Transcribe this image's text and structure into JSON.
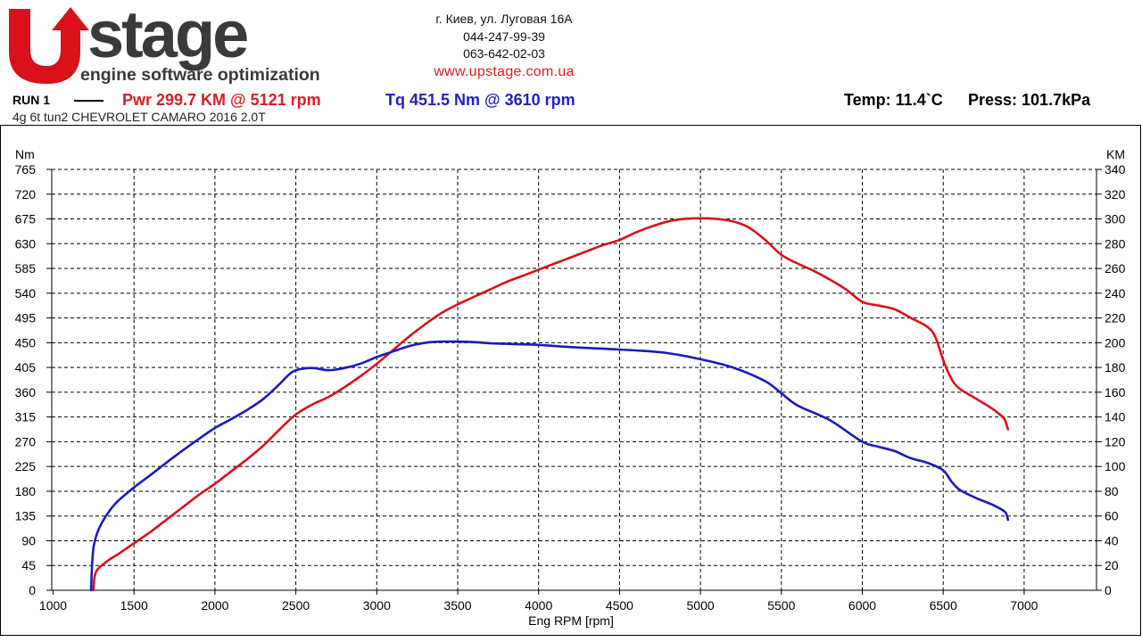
{
  "logo": {
    "brand": "stage",
    "tagline": "engine software optimization",
    "color_red": "#d9111b",
    "color_dark": "#3a3a3a"
  },
  "contact": {
    "address": "г. Киев, ул. Луговая 16А",
    "phone1": "044-247-99-39",
    "phone2": "063-642-02-03",
    "website": "www.upstage.com.ua"
  },
  "run": {
    "label": "RUN 1",
    "pwr": "Pwr  299.7 KM @ 5121 rpm",
    "tq": "Tq 451.5 Nm @ 3610 rpm",
    "temp": "Temp: 11.4`C",
    "press": "Press: 101.7kPa",
    "vehicle": "4g 6t tun2 CHEVROLET CAMARO 2016 2.0T"
  },
  "chart_data": {
    "type": "line",
    "xlabel": "Eng RPM [rpm]",
    "ylabel_left": "Nm",
    "ylabel_right": "KM",
    "xlim": [
      1000,
      7000
    ],
    "ylim_left": [
      0,
      765
    ],
    "ylim_right": [
      0,
      340
    ],
    "x_ticks": [
      1000,
      1500,
      2000,
      2500,
      3000,
      3500,
      4000,
      4500,
      5000,
      5500,
      6000,
      6500,
      7000
    ],
    "y_left_ticks": [
      0,
      45,
      90,
      135,
      180,
      225,
      270,
      315,
      360,
      405,
      450,
      495,
      540,
      585,
      630,
      675,
      720,
      765
    ],
    "y_right_ticks": [
      0,
      20,
      40,
      60,
      80,
      100,
      120,
      140,
      160,
      180,
      200,
      220,
      240,
      260,
      280,
      300,
      320,
      340
    ],
    "grid": true,
    "series": [
      {
        "axis": "right",
        "color": "#d9111b",
        "x": [
          1250,
          1255,
          1270,
          1300,
          1350,
          1400,
          1500,
          1600,
          1700,
          1800,
          1900,
          2000,
          2100,
          2200,
          2300,
          2400,
          2500,
          2600,
          2700,
          2800,
          2900,
          3000,
          3100,
          3200,
          3300,
          3400,
          3500,
          3600,
          3700,
          3800,
          3900,
          4000,
          4100,
          4200,
          4300,
          4400,
          4500,
          4600,
          4700,
          4800,
          4900,
          5000,
          5100,
          5200,
          5300,
          5400,
          5500,
          5600,
          5700,
          5800,
          5900,
          6000,
          6100,
          6200,
          6300,
          6400,
          6450,
          6500,
          6550,
          6600,
          6700,
          6800,
          6850,
          6880,
          6900
        ],
        "y": [
          0,
          10,
          16,
          20,
          25,
          29,
          38,
          47,
          57,
          67,
          77,
          86,
          96,
          106,
          117,
          130,
          142,
          150,
          156,
          164,
          173,
          183,
          194,
          205,
          215,
          224,
          231,
          237,
          243,
          249,
          254,
          259,
          264,
          269,
          274,
          279,
          283,
          289,
          294,
          298,
          300,
          300.5,
          300,
          298,
          293,
          283,
          271,
          264,
          258,
          251,
          243,
          233,
          230,
          227,
          220,
          213,
          205,
          186,
          171,
          163,
          155,
          147,
          142,
          138,
          130
        ]
      },
      {
        "axis": "left",
        "color": "#1b1bb8",
        "x": [
          1235,
          1240,
          1250,
          1270,
          1300,
          1350,
          1400,
          1500,
          1600,
          1700,
          1800,
          1900,
          2000,
          2100,
          2200,
          2300,
          2400,
          2450,
          2500,
          2600,
          2700,
          2800,
          2900,
          3000,
          3100,
          3200,
          3300,
          3400,
          3500,
          3600,
          3700,
          3800,
          3900,
          4000,
          4200,
          4400,
          4600,
          4800,
          5000,
          5200,
          5400,
          5500,
          5600,
          5800,
          6000,
          6100,
          6200,
          6300,
          6400,
          6500,
          6550,
          6600,
          6700,
          6800,
          6880,
          6900
        ],
        "y": [
          0,
          40,
          78,
          102,
          122,
          145,
          162,
          187,
          209,
          232,
          254,
          275,
          295,
          311,
          328,
          348,
          375,
          390,
          400,
          404,
          400,
          404,
          412,
          424,
          434,
          444,
          450,
          452,
          452,
          451,
          449,
          448,
          447,
          446,
          442,
          439,
          436,
          431,
          420,
          405,
          380,
          358,
          336,
          309,
          270,
          261,
          253,
          240,
          232,
          218,
          198,
          183,
          168,
          156,
          143,
          128
        ]
      }
    ]
  }
}
